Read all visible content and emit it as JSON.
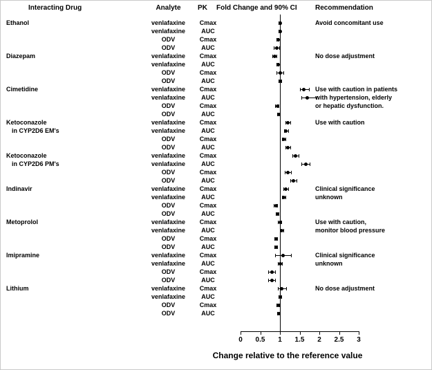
{
  "chart_data": {
    "type": "forest",
    "title": "",
    "xlabel": "Change relative to the reference value",
    "xlim": [
      0,
      3
    ],
    "x_ticks": [
      "0",
      "0.5",
      "1",
      "1.5",
      "2",
      "2.5",
      "3"
    ],
    "reference_line": 1,
    "legend_position": "none",
    "grid": false,
    "column_headers": [
      "Interacting Drug",
      "Analyte",
      "PK",
      "Fold Change and 90% CI",
      "Recommendation"
    ],
    "groups": [
      {
        "drug": "Ethanol",
        "drug_lines": [
          "Ethanol"
        ],
        "recommendation_lines": [
          "Avoid concomitant use"
        ],
        "rows": [
          {
            "analyte": "venlafaxine",
            "pk": "Cmax",
            "est": 1.0,
            "lo": 0.96,
            "hi": 1.04
          },
          {
            "analyte": "venlafaxine",
            "pk": "AUC",
            "est": 1.0,
            "lo": 0.96,
            "hi": 1.04
          },
          {
            "analyte": "ODV",
            "pk": "Cmax",
            "est": 0.95,
            "lo": 0.91,
            "hi": 0.99
          },
          {
            "analyte": "ODV",
            "pk": "AUC",
            "est": 0.92,
            "lo": 0.85,
            "hi": 1.0
          }
        ]
      },
      {
        "drug": "Diazepam",
        "drug_lines": [
          "Diazepam"
        ],
        "recommendation_lines": [
          "No dose adjustment"
        ],
        "rows": [
          {
            "analyte": "venlafaxine",
            "pk": "Cmax",
            "est": 0.86,
            "lo": 0.8,
            "hi": 0.93
          },
          {
            "analyte": "venlafaxine",
            "pk": "AUC",
            "est": 0.95,
            "lo": 0.91,
            "hi": 0.99
          },
          {
            "analyte": "ODV",
            "pk": "Cmax",
            "est": 1.0,
            "lo": 0.92,
            "hi": 1.1
          },
          {
            "analyte": "ODV",
            "pk": "AUC",
            "est": 1.0,
            "lo": 0.96,
            "hi": 1.05
          }
        ]
      },
      {
        "drug": "Cimetidine",
        "drug_lines": [
          "Cimetidine"
        ],
        "recommendation_lines": [
          "Use with caution in patients",
          "with hypertension, elderly",
          "or hepatic dysfunction."
        ],
        "rows": [
          {
            "analyte": "venlafaxine",
            "pk": "Cmax",
            "est": 1.6,
            "lo": 1.5,
            "hi": 1.75
          },
          {
            "analyte": "venlafaxine",
            "pk": "AUC",
            "est": 1.7,
            "lo": 1.55,
            "hi": 1.95
          },
          {
            "analyte": "ODV",
            "pk": "Cmax",
            "est": 0.93,
            "lo": 0.88,
            "hi": 0.98
          },
          {
            "analyte": "ODV",
            "pk": "AUC",
            "est": 0.97,
            "lo": 0.93,
            "hi": 1.02
          }
        ]
      },
      {
        "drug": "Ketoconazole in CYP2D6 EM's",
        "drug_lines": [
          "Ketoconazole",
          "in CYP2D6 EM's"
        ],
        "recommendation_lines": [
          "Use with caution"
        ],
        "rows": [
          {
            "analyte": "venlafaxine",
            "pk": "Cmax",
            "est": 1.2,
            "lo": 1.14,
            "hi": 1.28
          },
          {
            "analyte": "venlafaxine",
            "pk": "AUC",
            "est": 1.15,
            "lo": 1.1,
            "hi": 1.22
          },
          {
            "analyte": "ODV",
            "pk": "Cmax",
            "est": 1.1,
            "lo": 1.05,
            "hi": 1.16
          },
          {
            "analyte": "ODV",
            "pk": "AUC",
            "est": 1.2,
            "lo": 1.14,
            "hi": 1.28
          }
        ]
      },
      {
        "drug": "Ketoconazole in CYP2D6 PM's",
        "drug_lines": [
          "Ketoconazole",
          "in CYP2D6 PM's"
        ],
        "recommendation_lines": [],
        "rows": [
          {
            "analyte": "venlafaxine",
            "pk": "Cmax",
            "est": 1.4,
            "lo": 1.32,
            "hi": 1.5
          },
          {
            "analyte": "venlafaxine",
            "pk": "AUC",
            "est": 1.65,
            "lo": 1.55,
            "hi": 1.78
          },
          {
            "analyte": "ODV",
            "pk": "Cmax",
            "est": 1.2,
            "lo": 1.12,
            "hi": 1.3
          },
          {
            "analyte": "ODV",
            "pk": "AUC",
            "est": 1.35,
            "lo": 1.27,
            "hi": 1.44
          }
        ]
      },
      {
        "drug": "Indinavir",
        "drug_lines": [
          "Indinavir"
        ],
        "recommendation_lines": [
          "Clinical significance",
          "unknown"
        ],
        "rows": [
          {
            "analyte": "venlafaxine",
            "pk": "Cmax",
            "est": 1.15,
            "lo": 1.09,
            "hi": 1.22
          },
          {
            "analyte": "venlafaxine",
            "pk": "AUC",
            "est": 1.1,
            "lo": 1.05,
            "hi": 1.16
          },
          {
            "analyte": "ODV",
            "pk": "Cmax",
            "est": 0.9,
            "lo": 0.85,
            "hi": 0.95
          },
          {
            "analyte": "ODV",
            "pk": "AUC",
            "est": 0.93,
            "lo": 0.89,
            "hi": 0.98
          }
        ]
      },
      {
        "drug": "Metoprolol",
        "drug_lines": [
          "Metoprolol"
        ],
        "recommendation_lines": [
          "Use with caution,",
          "monitor blood pressure"
        ],
        "rows": [
          {
            "analyte": "venlafaxine",
            "pk": "Cmax",
            "est": 1.0,
            "lo": 0.95,
            "hi": 1.06
          },
          {
            "analyte": "venlafaxine",
            "pk": "AUC",
            "est": 1.05,
            "lo": 1.0,
            "hi": 1.11
          },
          {
            "analyte": "ODV",
            "pk": "Cmax",
            "est": 0.9,
            "lo": 0.86,
            "hi": 0.95
          },
          {
            "analyte": "ODV",
            "pk": "AUC",
            "est": 0.9,
            "lo": 0.86,
            "hi": 0.95
          }
        ]
      },
      {
        "drug": "Imipramine",
        "drug_lines": [
          "Imipramine"
        ],
        "recommendation_lines": [
          "Clinical significance",
          "unknown"
        ],
        "rows": [
          {
            "analyte": "venlafaxine",
            "pk": "Cmax",
            "est": 1.08,
            "lo": 0.88,
            "hi": 1.3
          },
          {
            "analyte": "venlafaxine",
            "pk": "AUC",
            "est": 1.0,
            "lo": 0.95,
            "hi": 1.07
          },
          {
            "analyte": "ODV",
            "pk": "Cmax",
            "est": 0.8,
            "lo": 0.7,
            "hi": 0.9
          },
          {
            "analyte": "ODV",
            "pk": "AUC",
            "est": 0.8,
            "lo": 0.7,
            "hi": 0.9
          }
        ]
      },
      {
        "drug": "Lithium",
        "drug_lines": [
          "Lithium"
        ],
        "recommendation_lines": [
          "No dose adjustment"
        ],
        "rows": [
          {
            "analyte": "venlafaxine",
            "pk": "Cmax",
            "est": 1.05,
            "lo": 0.95,
            "hi": 1.17
          },
          {
            "analyte": "venlafaxine",
            "pk": "AUC",
            "est": 1.0,
            "lo": 0.96,
            "hi": 1.05
          },
          {
            "analyte": "ODV",
            "pk": "Cmax",
            "est": 0.95,
            "lo": 0.91,
            "hi": 1.0
          },
          {
            "analyte": "ODV",
            "pk": "AUC",
            "est": 0.97,
            "lo": 0.93,
            "hi": 1.02
          }
        ]
      }
    ]
  }
}
